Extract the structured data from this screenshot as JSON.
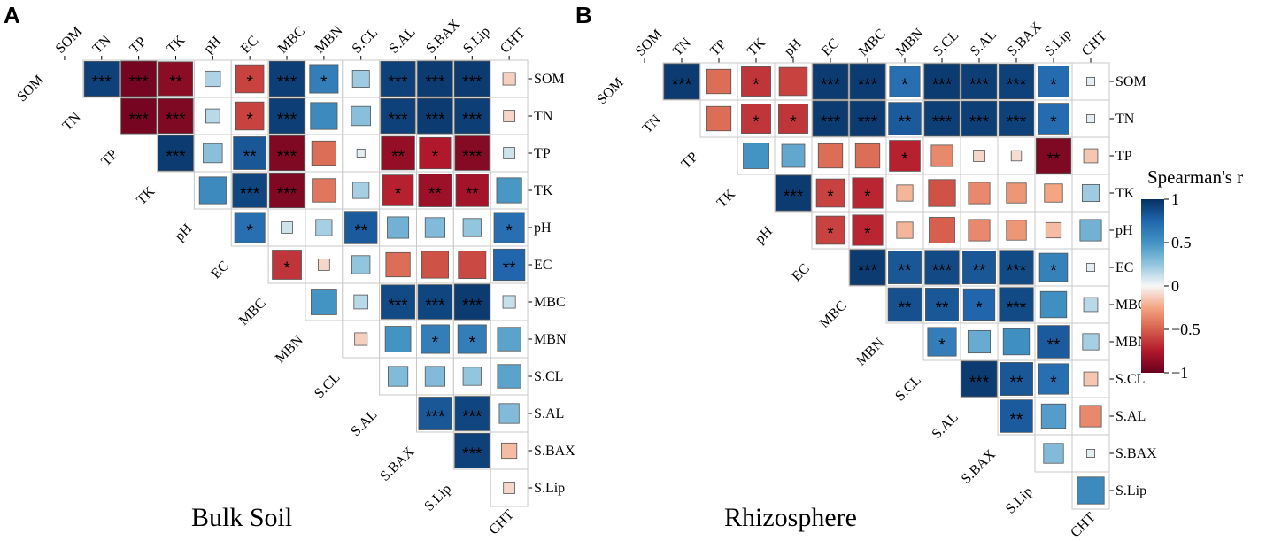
{
  "chart_data": [
    {
      "type": "heatmap",
      "panel_letter": "A",
      "title": "Bulk Soil",
      "variables": [
        "SOM",
        "TN",
        "TP",
        "TK",
        "pH",
        "EC",
        "MBC",
        "MBN",
        "S.CL",
        "S.AL",
        "S.BAX",
        "S.Lip",
        "CHT"
      ],
      "layout": "upper-triangle",
      "rows": [
        {
          "label": "SOM",
          "values": [
            0.92,
            -0.95,
            -0.88,
            0.18,
            -0.6,
            0.93,
            0.62,
            0.22,
            0.92,
            0.95,
            0.95,
            -0.12
          ],
          "sig": [
            "***",
            "***",
            "**",
            "",
            "*",
            "***",
            "*",
            "",
            "***",
            "***",
            "***",
            ""
          ]
        },
        {
          "label": "TN",
          "values": [
            -0.95,
            -0.92,
            0.15,
            -0.6,
            0.93,
            0.55,
            0.28,
            0.92,
            0.95,
            0.93,
            -0.1
          ],
          "sig": [
            "***",
            "***",
            "",
            "*",
            "***",
            "",
            "",
            "***",
            "***",
            "***",
            ""
          ]
        },
        {
          "label": "TP",
          "values": [
            0.95,
            0.28,
            0.82,
            -0.92,
            -0.45,
            0.05,
            -0.85,
            -0.75,
            -0.9,
            0.1
          ],
          "sig": [
            "***",
            "",
            "**",
            "***",
            "",
            "",
            "**",
            "*",
            "***",
            ""
          ]
        },
        {
          "label": "TK",
          "values": [
            0.55,
            0.9,
            -0.92,
            -0.42,
            0.2,
            -0.72,
            -0.82,
            -0.8,
            0.48
          ],
          "sig": [
            "",
            "***",
            "***",
            "",
            "",
            "*",
            "**",
            "**",
            ""
          ]
        },
        {
          "label": "pH",
          "values": [
            0.7,
            0.1,
            0.2,
            0.8,
            0.35,
            0.3,
            0.25,
            0.7
          ],
          "sig": [
            "*",
            "",
            "",
            "**",
            "",
            "",
            "",
            "*"
          ]
        },
        {
          "label": "EC",
          "values": [
            -0.65,
            -0.1,
            0.25,
            -0.45,
            -0.55,
            -0.58,
            0.75
          ],
          "sig": [
            "*",
            "",
            "",
            "",
            "",
            "",
            "**"
          ]
        },
        {
          "label": "MBC",
          "values": [
            0.5,
            0.15,
            0.88,
            0.9,
            0.95,
            0.12
          ],
          "sig": [
            "",
            "",
            "***",
            "***",
            "***",
            ""
          ]
        },
        {
          "label": "MBN",
          "values": [
            -0.12,
            0.5,
            0.62,
            0.62,
            0.42
          ],
          "sig": [
            "",
            "",
            "*",
            "*",
            ""
          ]
        },
        {
          "label": "S.CL",
          "values": [
            0.3,
            0.3,
            0.25,
            0.42
          ],
          "sig": [
            "",
            "",
            "",
            ""
          ]
        },
        {
          "label": "S.AL",
          "values": [
            0.82,
            0.9,
            0.3
          ],
          "sig": [
            "***",
            "***",
            ""
          ]
        },
        {
          "label": "S.BAX",
          "values": [
            0.92,
            -0.18
          ],
          "sig": [
            "***",
            ""
          ]
        },
        {
          "label": "S.Lip",
          "values": [
            -0.1
          ],
          "sig": [
            ""
          ]
        }
      ]
    },
    {
      "type": "heatmap",
      "panel_letter": "B",
      "title": "Rhizosphere",
      "variables": [
        "SOM",
        "TN",
        "TP",
        "TK",
        "pH",
        "EC",
        "MBC",
        "MBN",
        "S.CL",
        "S.AL",
        "S.BAX",
        "S.Lip",
        "CHT"
      ],
      "layout": "upper-triangle",
      "rows": [
        {
          "label": "SOM",
          "values": [
            0.95,
            -0.45,
            -0.65,
            -0.6,
            0.95,
            0.95,
            0.7,
            0.95,
            0.93,
            0.92,
            0.72,
            0.05
          ],
          "sig": [
            "***",
            "",
            "*",
            "",
            "***",
            "***",
            "*",
            "***",
            "***",
            "***",
            "*",
            ""
          ]
        },
        {
          "label": "TN",
          "values": [
            -0.45,
            -0.65,
            -0.65,
            0.95,
            0.95,
            0.8,
            0.93,
            0.93,
            0.92,
            0.72,
            0.05
          ],
          "sig": [
            "",
            "*",
            "*",
            "***",
            "***",
            "**",
            "***",
            "***",
            "***",
            "*",
            ""
          ]
        },
        {
          "label": "TP",
          "values": [
            0.5,
            0.4,
            -0.45,
            -0.45,
            -0.72,
            -0.35,
            -0.1,
            -0.08,
            -0.92,
            -0.15
          ],
          "sig": [
            "",
            "",
            "",
            "",
            "*",
            "",
            "",
            "",
            "**",
            ""
          ]
        },
        {
          "label": "TK",
          "values": [
            0.95,
            -0.6,
            -0.7,
            -0.2,
            -0.55,
            -0.35,
            -0.3,
            -0.25,
            0.22
          ],
          "sig": [
            "***",
            "*",
            "*",
            "",
            "",
            "",
            "",
            "",
            ""
          ]
        },
        {
          "label": "pH",
          "values": [
            -0.6,
            -0.7,
            -0.2,
            -0.5,
            -0.35,
            -0.3,
            -0.18,
            0.35
          ],
          "sig": [
            "*",
            "*",
            "",
            "",
            "",
            "",
            "",
            ""
          ]
        },
        {
          "label": "EC",
          "values": [
            0.95,
            0.82,
            0.88,
            0.82,
            0.88,
            0.6,
            0.05
          ],
          "sig": [
            "***",
            "**",
            "***",
            "**",
            "***",
            "*",
            ""
          ]
        },
        {
          "label": "MBC",
          "values": [
            0.85,
            0.82,
            0.75,
            0.88,
            0.52,
            0.15
          ],
          "sig": [
            "**",
            "**",
            "*",
            "***",
            "",
            ""
          ]
        },
        {
          "label": "MBN",
          "values": [
            0.62,
            0.38,
            0.52,
            0.8,
            0.2
          ],
          "sig": [
            "*",
            "",
            "",
            "**",
            ""
          ]
        },
        {
          "label": "S.CL",
          "values": [
            0.95,
            0.82,
            0.7,
            -0.15
          ],
          "sig": [
            "***",
            "**",
            "*",
            ""
          ]
        },
        {
          "label": "S.AL",
          "values": [
            0.8,
            0.45,
            -0.35
          ],
          "sig": [
            "**",
            "",
            ""
          ]
        },
        {
          "label": "S.BAX",
          "values": [
            0.3,
            0.05
          ],
          "sig": [
            "",
            ""
          ]
        },
        {
          "label": "S.Lip",
          "values": [
            0.55
          ],
          "sig": [
            ""
          ]
        }
      ]
    }
  ],
  "legend": {
    "title": "Spearman's r",
    "ticks": [
      {
        "value": 1,
        "label": "1"
      },
      {
        "value": 0.5,
        "label": "0.5"
      },
      {
        "value": 0,
        "label": "0"
      },
      {
        "value": -0.5,
        "label": "−0.5"
      },
      {
        "value": -1,
        "label": "−1"
      }
    ]
  }
}
